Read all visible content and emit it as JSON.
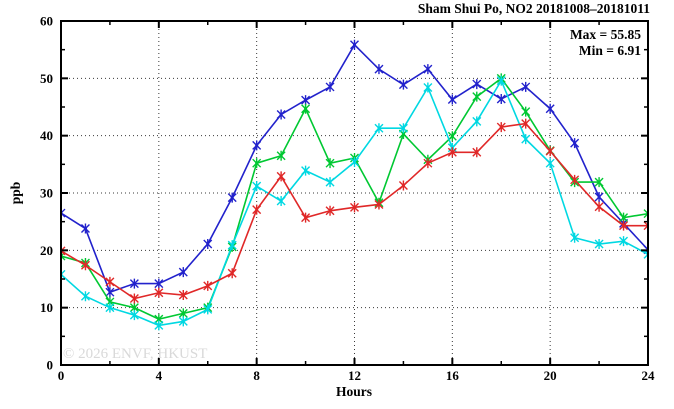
{
  "chart_data": {
    "type": "line",
    "title": "Sham Shui Po, NO2 20181008–20181011",
    "annotations": {
      "max": "Max = 55.85",
      "min": "Min =  6.91"
    },
    "watermark": "© 2026 ENVF, HKUST",
    "xlabel": "Hours",
    "ylabel": "ppb",
    "xlim": [
      0,
      24
    ],
    "ylim": [
      0,
      60
    ],
    "x_major_ticks": [
      0,
      4,
      8,
      12,
      16,
      20,
      24
    ],
    "x_minor_step": 2,
    "y_major_ticks": [
      0,
      10,
      20,
      30,
      40,
      50,
      60
    ],
    "y_minor_step": 5,
    "grid": true,
    "legend_position": "none",
    "marker": "asterisk-with-center-square",
    "x_hours": [
      0,
      1,
      2,
      3,
      4,
      5,
      6,
      7,
      8,
      9,
      10,
      11,
      12,
      13,
      14,
      15,
      16,
      17,
      18,
      19,
      20,
      21,
      22,
      23,
      24
    ],
    "series": [
      {
        "name": "blue",
        "color": "#2222cc",
        "values": [
          26.5,
          23.8,
          12.7,
          14.2,
          14.2,
          16.2,
          21.1,
          29.2,
          38.3,
          43.7,
          46.2,
          48.5,
          55.85,
          51.6,
          48.9,
          51.6,
          46.3,
          49.0,
          46.4,
          48.5,
          44.7,
          38.7,
          29.3,
          24.7,
          20.1
        ]
      },
      {
        "name": "green",
        "color": "#00c832",
        "values": [
          19.0,
          17.8,
          11.0,
          10.0,
          8.0,
          9.0,
          10.0,
          20.6,
          35.2,
          36.5,
          44.7,
          35.2,
          36.1,
          28.3,
          40.3,
          35.8,
          39.9,
          46.8,
          50.0,
          44.2,
          37.4,
          31.9,
          31.9,
          25.7,
          26.4
        ]
      },
      {
        "name": "cyan",
        "color": "#00d8e2",
        "values": [
          15.8,
          12.0,
          10.0,
          8.7,
          6.91,
          7.6,
          9.7,
          20.9,
          31.2,
          28.6,
          33.9,
          31.9,
          35.4,
          41.3,
          41.3,
          48.4,
          37.9,
          42.5,
          49.6,
          39.4,
          35.2,
          22.2,
          21.1,
          21.6,
          19.3
        ]
      },
      {
        "name": "red",
        "color": "#e02828",
        "values": [
          19.9,
          17.4,
          14.5,
          11.6,
          12.6,
          12.2,
          13.8,
          16.0,
          27.1,
          32.9,
          25.7,
          26.9,
          27.5,
          28.0,
          31.3,
          35.2,
          37.1,
          37.1,
          41.5,
          42.1,
          37.3,
          32.3,
          27.6,
          24.3,
          24.3
        ]
      }
    ]
  }
}
